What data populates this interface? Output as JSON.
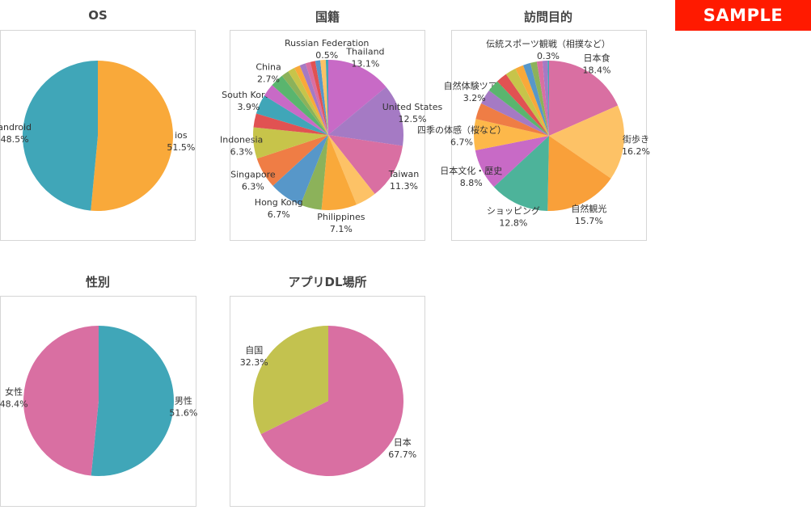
{
  "badge": {
    "text": "SAMPLE",
    "color": "#ff1a00"
  },
  "chart_data": [
    {
      "id": "os",
      "type": "pie",
      "title": "OS",
      "slices": [
        {
          "label": "ios",
          "value": 51.5,
          "display": "51.5%",
          "color": "#f9a93a"
        },
        {
          "label": "android",
          "value": 48.5,
          "display": "48.5%",
          "color": "#40a6b8"
        }
      ]
    },
    {
      "id": "nationality",
      "type": "pie",
      "title": "国籍",
      "slices": [
        {
          "label": "Thailand",
          "value": 13.1,
          "display": "13.1%",
          "color": "#c86ac6"
        },
        {
          "label": "United States",
          "value": 12.5,
          "display": "12.5%",
          "color": "#a57ac4"
        },
        {
          "label": "Taiwan",
          "value": 11.3,
          "display": "11.3%",
          "color": "#d96fa2"
        },
        {
          "label": "",
          "value": 4.2,
          "display": "",
          "color": "#fdc266"
        },
        {
          "label": "Philippines",
          "value": 7.1,
          "display": "7.1%",
          "color": "#f9a93a"
        },
        {
          "label": "",
          "value": 4.3,
          "display": "",
          "color": "#8cb25a"
        },
        {
          "label": "Hong Kong",
          "value": 6.7,
          "display": "6.7%",
          "color": "#5797c9"
        },
        {
          "label": "Singapore",
          "value": 6.3,
          "display": "6.3%",
          "color": "#ef7d45"
        },
        {
          "label": "Indonesia",
          "value": 6.3,
          "display": "6.3%",
          "color": "#c7c44a"
        },
        {
          "label": "",
          "value": 2.8,
          "display": "",
          "color": "#e15252"
        },
        {
          "label": "South Korea",
          "value": 3.9,
          "display": "3.9%",
          "color": "#40a6b8"
        },
        {
          "label": "",
          "value": 2.6,
          "display": "",
          "color": "#c86ac6"
        },
        {
          "label": "China",
          "value": 2.7,
          "display": "2.7%",
          "color": "#5ab56e"
        },
        {
          "label": "",
          "value": 1.5,
          "display": "",
          "color": "#8cb25a"
        },
        {
          "label": "",
          "value": 1.4,
          "display": "",
          "color": "#c7c44a"
        },
        {
          "label": "",
          "value": 1.2,
          "display": "",
          "color": "#f9a93a"
        },
        {
          "label": "",
          "value": 1.2,
          "display": "",
          "color": "#a57ac4"
        },
        {
          "label": "",
          "value": 1.0,
          "display": "",
          "color": "#d96fa2"
        },
        {
          "label": "",
          "value": 1.0,
          "display": "",
          "color": "#e15252"
        },
        {
          "label": "",
          "value": 1.0,
          "display": "",
          "color": "#5797c9"
        },
        {
          "label": "",
          "value": 1.1,
          "display": "",
          "color": "#fdc266"
        },
        {
          "label": "Russian Federation",
          "value": 0.5,
          "display": "0.5%",
          "color": "#40a6b8"
        }
      ]
    },
    {
      "id": "purpose",
      "type": "pie",
      "title": "訪問目的",
      "slices": [
        {
          "label": "日本食",
          "value": 18.4,
          "display": "18.4%",
          "color": "#d96fa2"
        },
        {
          "label": "街歩き",
          "value": 16.2,
          "display": "16.2%",
          "color": "#fdc266"
        },
        {
          "label": "自然観光",
          "value": 15.7,
          "display": "15.7%",
          "color": "#f9a03a"
        },
        {
          "label": "ショッピング",
          "value": 12.8,
          "display": "12.8%",
          "color": "#4db39a"
        },
        {
          "label": "日本文化・歴史",
          "value": 8.8,
          "display": "8.8%",
          "color": "#c86ac6"
        },
        {
          "label": "四季の体感（桜など）",
          "value": 6.7,
          "display": "6.7%",
          "color": "#fdb84a"
        },
        {
          "label": "",
          "value": 3.5,
          "display": "",
          "color": "#ef7d45"
        },
        {
          "label": "自然体験ツアー",
          "value": 3.2,
          "display": "3.2%",
          "color": "#a57ac4"
        },
        {
          "label": "",
          "value": 2.6,
          "display": "",
          "color": "#5ab56e"
        },
        {
          "label": "",
          "value": 2.4,
          "display": "",
          "color": "#e15252"
        },
        {
          "label": "",
          "value": 2.3,
          "display": "",
          "color": "#c7c44a"
        },
        {
          "label": "",
          "value": 1.8,
          "display": "",
          "color": "#f9a93a"
        },
        {
          "label": "",
          "value": 1.6,
          "display": "",
          "color": "#5797c9"
        },
        {
          "label": "",
          "value": 1.4,
          "display": "",
          "color": "#8cb25a"
        },
        {
          "label": "",
          "value": 1.2,
          "display": "",
          "color": "#d96fa2"
        },
        {
          "label": "",
          "value": 1.1,
          "display": "",
          "color": "#a57ac4"
        },
        {
          "label": "伝統スポーツ観戦（相撲など）",
          "value": 0.3,
          "display": "0.3%",
          "color": "#40a6b8"
        }
      ]
    },
    {
      "id": "gender",
      "type": "pie",
      "title": "性別",
      "slices": [
        {
          "label": "男性",
          "value": 51.6,
          "display": "51.6%",
          "color": "#40a6b8"
        },
        {
          "label": "女性",
          "value": 48.4,
          "display": "48.4%",
          "color": "#d96fa2"
        }
      ]
    },
    {
      "id": "dl_location",
      "type": "pie",
      "title": "アプリDL場所",
      "slices": [
        {
          "label": "日本",
          "value": 67.7,
          "display": "67.7%",
          "color": "#d96fa2"
        },
        {
          "label": "自国",
          "value": 32.3,
          "display": "32.3%",
          "color": "#c3c24f"
        }
      ]
    }
  ]
}
